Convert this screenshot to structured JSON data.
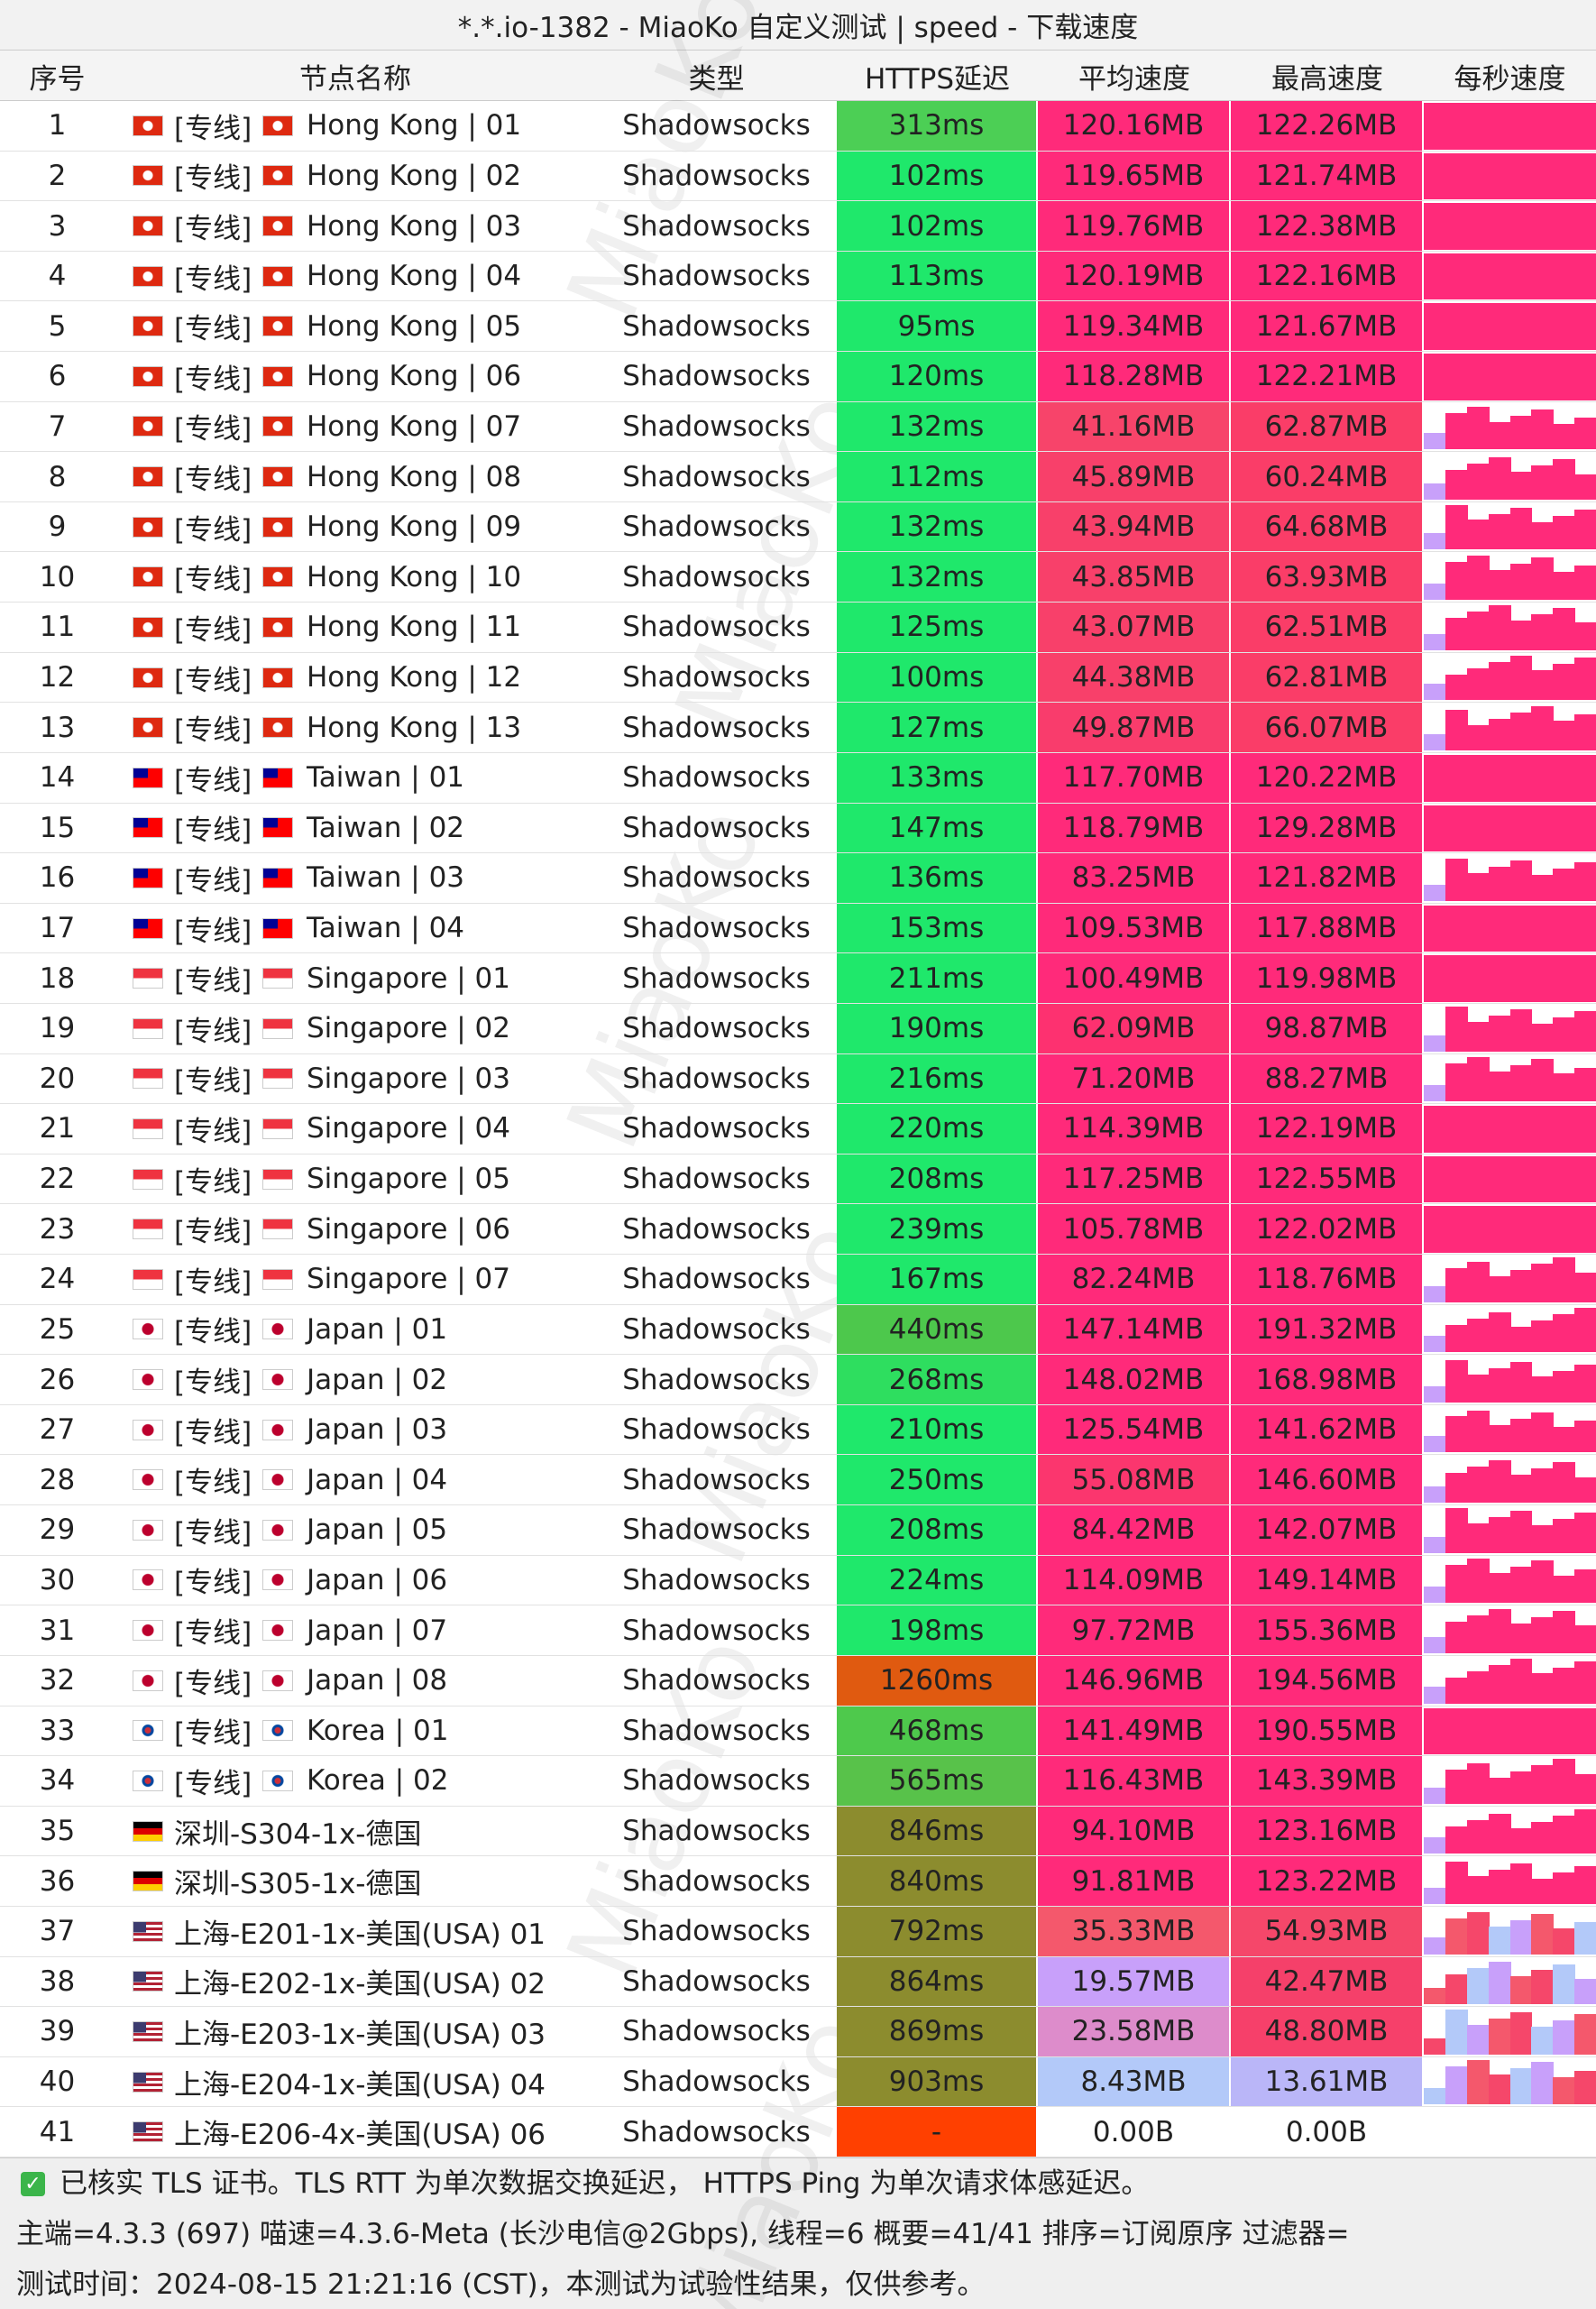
{
  "title": "*.*.io-1382 - MiaoKo 自定义测试 | speed - 下载速度",
  "watermark": "MiaoKo",
  "table": {
    "header": [
      "序号",
      "节点名称",
      "类型",
      "HTTPS延迟",
      "平均速度",
      "最高速度",
      "每秒速度"
    ],
    "rows": [
      {
        "index": 1,
        "tag": "[专线]",
        "name": "Hong Kong | 01",
        "type": "Shadowsocks",
        "latency": "313ms",
        "avg": "120.16MB",
        "max": "122.26MB",
        "colors": [
          "#4ccf55",
          "#ff2a7a",
          "#ff2a7a"
        ]
      },
      {
        "index": 2,
        "tag": "[专线]",
        "name": "Hong Kong | 02",
        "type": "Shadowsocks",
        "latency": "102ms",
        "avg": "119.65MB",
        "max": "121.74MB",
        "colors": [
          "#1fe86b",
          "#ff2a7a",
          "#ff2a7a"
        ]
      },
      {
        "index": 3,
        "tag": "[专线]",
        "name": "Hong Kong | 03",
        "type": "Shadowsocks",
        "latency": "102ms",
        "avg": "119.76MB",
        "max": "122.38MB",
        "colors": [
          "#1fe86b",
          "#ff2a7a",
          "#ff2a7a"
        ]
      },
      {
        "index": 4,
        "tag": "[专线]",
        "name": "Hong Kong | 04",
        "type": "Shadowsocks",
        "latency": "113ms",
        "avg": "120.19MB",
        "max": "122.16MB",
        "colors": [
          "#1fe86b",
          "#ff2a7a",
          "#ff2a7a"
        ]
      },
      {
        "index": 5,
        "tag": "[专线]",
        "name": "Hong Kong | 05",
        "type": "Shadowsocks",
        "latency": "95ms",
        "avg": "119.34MB",
        "max": "121.67MB",
        "colors": [
          "#1fe86b",
          "#ff2a7a",
          "#ff2a7a"
        ]
      },
      {
        "index": 6,
        "tag": "[专线]",
        "name": "Hong Kong | 06",
        "type": "Shadowsocks",
        "latency": "120ms",
        "avg": "118.28MB",
        "max": "122.21MB",
        "colors": [
          "#1fe86b",
          "#ff2a7a",
          "#ff2a7a"
        ]
      },
      {
        "index": 7,
        "tag": "[专线]",
        "name": "Hong Kong | 07",
        "type": "Shadowsocks",
        "latency": "132ms",
        "avg": "41.16MB",
        "max": "62.87MB",
        "colors": [
          "#1fe86b",
          "#f7446a",
          "#fa3d68"
        ]
      },
      {
        "index": 8,
        "tag": "[专线]",
        "name": "Hong Kong | 08",
        "type": "Shadowsocks",
        "latency": "112ms",
        "avg": "45.89MB",
        "max": "60.24MB",
        "colors": [
          "#1fe86b",
          "#f8406a",
          "#fa3d68"
        ]
      },
      {
        "index": 9,
        "tag": "[专线]",
        "name": "Hong Kong | 09",
        "type": "Shadowsocks",
        "latency": "132ms",
        "avg": "43.94MB",
        "max": "64.68MB",
        "colors": [
          "#1fe86b",
          "#f8406a",
          "#fa3d68"
        ]
      },
      {
        "index": 10,
        "tag": "[专线]",
        "name": "Hong Kong | 10",
        "type": "Shadowsocks",
        "latency": "132ms",
        "avg": "43.85MB",
        "max": "63.93MB",
        "colors": [
          "#1fe86b",
          "#f8406a",
          "#fa3d68"
        ]
      },
      {
        "index": 11,
        "tag": "[专线]",
        "name": "Hong Kong | 11",
        "type": "Shadowsocks",
        "latency": "125ms",
        "avg": "43.07MB",
        "max": "62.51MB",
        "colors": [
          "#1fe86b",
          "#f8406a",
          "#fa3d68"
        ]
      },
      {
        "index": 12,
        "tag": "[专线]",
        "name": "Hong Kong | 12",
        "type": "Shadowsocks",
        "latency": "100ms",
        "avg": "44.38MB",
        "max": "62.81MB",
        "colors": [
          "#1fe86b",
          "#f8406a",
          "#fa3d68"
        ]
      },
      {
        "index": 13,
        "tag": "[专线]",
        "name": "Hong Kong | 13",
        "type": "Shadowsocks",
        "latency": "127ms",
        "avg": "49.87MB",
        "max": "66.07MB",
        "colors": [
          "#1fe86b",
          "#f93c6c",
          "#fa3d68"
        ]
      },
      {
        "index": 14,
        "tag": "[专线]",
        "name": "Taiwan | 01",
        "type": "Shadowsocks",
        "latency": "133ms",
        "avg": "117.70MB",
        "max": "120.22MB",
        "colors": [
          "#1fe86b",
          "#ff2a7a",
          "#ff2a7a"
        ]
      },
      {
        "index": 15,
        "tag": "[专线]",
        "name": "Taiwan | 02",
        "type": "Shadowsocks",
        "latency": "147ms",
        "avg": "118.79MB",
        "max": "129.28MB",
        "colors": [
          "#1fe86b",
          "#ff2a7a",
          "#ff2a7a"
        ]
      },
      {
        "index": 16,
        "tag": "[专线]",
        "name": "Taiwan | 03",
        "type": "Shadowsocks",
        "latency": "136ms",
        "avg": "83.25MB",
        "max": "121.82MB",
        "colors": [
          "#1fe86b",
          "#ff2a7a",
          "#ff2a7a"
        ]
      },
      {
        "index": 17,
        "tag": "[专线]",
        "name": "Taiwan | 04",
        "type": "Shadowsocks",
        "latency": "153ms",
        "avg": "109.53MB",
        "max": "117.88MB",
        "colors": [
          "#1fe86b",
          "#ff2a7a",
          "#ff2a7a"
        ]
      },
      {
        "index": 18,
        "tag": "[专线]",
        "name": "Singapore | 01",
        "type": "Shadowsocks",
        "latency": "211ms",
        "avg": "100.49MB",
        "max": "119.98MB",
        "colors": [
          "#1fe86b",
          "#ff2a7a",
          "#ff2a7a"
        ]
      },
      {
        "index": 19,
        "tag": "[专线]",
        "name": "Singapore | 02",
        "type": "Shadowsocks",
        "latency": "190ms",
        "avg": "62.09MB",
        "max": "98.87MB",
        "colors": [
          "#1fe86b",
          "#fd3170",
          "#ff2a7a"
        ]
      },
      {
        "index": 20,
        "tag": "[专线]",
        "name": "Singapore | 03",
        "type": "Shadowsocks",
        "latency": "216ms",
        "avg": "71.20MB",
        "max": "88.27MB",
        "colors": [
          "#1fe86b",
          "#ff2a7a",
          "#ff2a7a"
        ]
      },
      {
        "index": 21,
        "tag": "[专线]",
        "name": "Singapore | 04",
        "type": "Shadowsocks",
        "latency": "220ms",
        "avg": "114.39MB",
        "max": "122.19MB",
        "colors": [
          "#1fe86b",
          "#ff2a7a",
          "#ff2a7a"
        ]
      },
      {
        "index": 22,
        "tag": "[专线]",
        "name": "Singapore | 05",
        "type": "Shadowsocks",
        "latency": "208ms",
        "avg": "117.25MB",
        "max": "122.55MB",
        "colors": [
          "#1fe86b",
          "#ff2a7a",
          "#ff2a7a"
        ]
      },
      {
        "index": 23,
        "tag": "[专线]",
        "name": "Singapore | 06",
        "type": "Shadowsocks",
        "latency": "239ms",
        "avg": "105.78MB",
        "max": "122.02MB",
        "colors": [
          "#1fe86b",
          "#ff2a7a",
          "#ff2a7a"
        ]
      },
      {
        "index": 24,
        "tag": "[专线]",
        "name": "Singapore | 07",
        "type": "Shadowsocks",
        "latency": "167ms",
        "avg": "82.24MB",
        "max": "118.76MB",
        "colors": [
          "#1fe86b",
          "#ff2a7a",
          "#ff2a7a"
        ]
      },
      {
        "index": 25,
        "tag": "[专线]",
        "name": "Japan | 01",
        "type": "Shadowsocks",
        "latency": "440ms",
        "avg": "147.14MB",
        "max": "191.32MB",
        "colors": [
          "#4dc84c",
          "#ff2a7a",
          "#ff2a7a"
        ]
      },
      {
        "index": 26,
        "tag": "[专线]",
        "name": "Japan | 02",
        "type": "Shadowsocks",
        "latency": "268ms",
        "avg": "148.02MB",
        "max": "168.98MB",
        "colors": [
          "#2ede5f",
          "#ff2a7a",
          "#ff2a7a"
        ]
      },
      {
        "index": 27,
        "tag": "[专线]",
        "name": "Japan | 03",
        "type": "Shadowsocks",
        "latency": "210ms",
        "avg": "125.54MB",
        "max": "141.62MB",
        "colors": [
          "#1fe86b",
          "#ff2a7a",
          "#ff2a7a"
        ]
      },
      {
        "index": 28,
        "tag": "[专线]",
        "name": "Japan | 04",
        "type": "Shadowsocks",
        "latency": "250ms",
        "avg": "55.08MB",
        "max": "146.60MB",
        "colors": [
          "#1fe86b",
          "#fb366e",
          "#ff2a7a"
        ]
      },
      {
        "index": 29,
        "tag": "[专线]",
        "name": "Japan | 05",
        "type": "Shadowsocks",
        "latency": "208ms",
        "avg": "84.42MB",
        "max": "142.07MB",
        "colors": [
          "#1fe86b",
          "#ff2a7a",
          "#ff2a7a"
        ]
      },
      {
        "index": 30,
        "tag": "[专线]",
        "name": "Japan | 06",
        "type": "Shadowsocks",
        "latency": "224ms",
        "avg": "114.09MB",
        "max": "149.14MB",
        "colors": [
          "#1fe86b",
          "#ff2a7a",
          "#ff2a7a"
        ]
      },
      {
        "index": 31,
        "tag": "[专线]",
        "name": "Japan | 07",
        "type": "Shadowsocks",
        "latency": "198ms",
        "avg": "97.72MB",
        "max": "155.36MB",
        "colors": [
          "#1fe86b",
          "#ff2a7a",
          "#ff2a7a"
        ]
      },
      {
        "index": 32,
        "tag": "[专线]",
        "name": "Japan | 08",
        "type": "Shadowsocks",
        "latency": "1260ms",
        "avg": "146.96MB",
        "max": "194.56MB",
        "colors": [
          "#e05a10",
          "#ff2a7a",
          "#ff2a7a"
        ]
      },
      {
        "index": 33,
        "tag": "[专线]",
        "name": "Korea | 01",
        "type": "Shadowsocks",
        "latency": "468ms",
        "avg": "141.49MB",
        "max": "190.55MB",
        "colors": [
          "#4ec94c",
          "#ff2a7a",
          "#ff2a7a"
        ]
      },
      {
        "index": 34,
        "tag": "[专线]",
        "name": "Korea | 02",
        "type": "Shadowsocks",
        "latency": "565ms",
        "avg": "116.43MB",
        "max": "143.39MB",
        "colors": [
          "#58c24a",
          "#ff2a7a",
          "#ff2a7a"
        ]
      },
      {
        "index": 35,
        "name": "深圳-S304-1x-德国",
        "type": "Shadowsocks",
        "latency": "846ms",
        "avg": "94.10MB",
        "max": "123.16MB",
        "colors": [
          "#8c8c2e",
          "#ff2a7a",
          "#ff2a7a"
        ]
      },
      {
        "index": 36,
        "name": "深圳-S305-1x-德国",
        "type": "Shadowsocks",
        "latency": "840ms",
        "avg": "91.81MB",
        "max": "123.22MB",
        "colors": [
          "#8c8c2e",
          "#ff2a7a",
          "#ff2a7a"
        ]
      },
      {
        "index": 37,
        "name": "上海-E201-1x-美国(USA) 01",
        "type": "Shadowsocks",
        "latency": "792ms",
        "avg": "35.33MB",
        "max": "54.93MB",
        "colors": [
          "#8c8c2e",
          "#f4586c",
          "#f5476a"
        ]
      },
      {
        "index": 38,
        "name": "上海-E202-1x-美国(USA) 02",
        "type": "Shadowsocks",
        "latency": "864ms",
        "avg": "19.57MB",
        "max": "42.47MB",
        "colors": [
          "#8c8c2e",
          "#c8a0fa",
          "#f5406a"
        ]
      },
      {
        "index": 39,
        "name": "上海-E203-1x-美国(USA) 03",
        "type": "Shadowsocks",
        "latency": "869ms",
        "avg": "23.58MB",
        "max": "48.80MB",
        "colors": [
          "#8c8c2e",
          "#dd8ccb",
          "#f6406a"
        ]
      },
      {
        "index": 40,
        "name": "上海-E204-1x-美国(USA) 04",
        "type": "Shadowsocks",
        "latency": "903ms",
        "avg": "8.43MB",
        "max": "13.61MB",
        "colors": [
          "#8c8c2e",
          "#b3c9f9",
          "#bab6f8"
        ]
      },
      {
        "index": 41,
        "name": "上海-E206-4x-美国(USA) 06",
        "type": "Shadowsocks",
        "latency": "-",
        "avg": "0.00B",
        "max": "0.00B",
        "colors": [
          "#ff4000",
          "#ffffff",
          "#ffffff"
        ]
      }
    ]
  },
  "footer": [
    "已核实 TLS 证书。TLS RTT 为单次数据交换延迟， HTTPS Ping 为单次请求体感延迟。",
    "主端=4.3.3 (697) 喵速=4.3.6-Meta (长沙电信@2Gbps), 线程=6 概要=41/41 排序=订阅原序 过滤器=",
    "测试时间：2024-08-15 21:21:16 (CST)，本测试为试验性结果，仅供参考。"
  ]
}
